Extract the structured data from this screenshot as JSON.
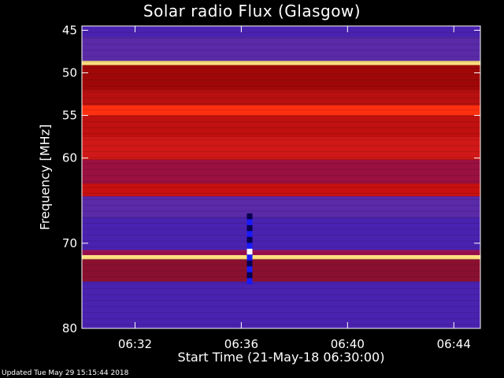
{
  "chart_data": {
    "type": "heatmap",
    "title": "Solar radio Flux (Glasgow)",
    "xlabel": "Start Time (21-May-18 06:30:00)",
    "ylabel": "Frequency [MHz]",
    "footer": "Updated Tue May 29 15:15:44 2018",
    "x_tick_labels": [
      "06:32",
      "06:36",
      "06:40",
      "06:44"
    ],
    "x_tick_minutes": [
      2,
      6,
      10,
      14
    ],
    "x_range_minutes": [
      0,
      15
    ],
    "y_tick_labels": [
      "45",
      "50",
      "55",
      "60",
      "70",
      "80"
    ],
    "y_tick_values": [
      45,
      50,
      55,
      60,
      70,
      80
    ],
    "y_range_mhz": [
      44.5,
      80
    ],
    "colormap": [
      "#1a0033",
      "#3a1aa0",
      "#5a2ab8",
      "#8a1a6a",
      "#b00000",
      "#e01010",
      "#ff4020",
      "#ffa040",
      "#ffe080"
    ],
    "bands": [
      {
        "from": 44.5,
        "to": 45.8,
        "color": "#4a22b0"
      },
      {
        "from": 45.8,
        "to": 48.6,
        "color": "#5a2aa8"
      },
      {
        "from": 48.6,
        "to": 49.1,
        "color": "#ffe080"
      },
      {
        "from": 49.1,
        "to": 52.0,
        "color": "#a00808"
      },
      {
        "from": 52.0,
        "to": 53.8,
        "color": "#b81010"
      },
      {
        "from": 53.8,
        "to": 55.0,
        "color": "#ff3010"
      },
      {
        "from": 55.0,
        "to": 57.5,
        "color": "#c01010"
      },
      {
        "from": 57.5,
        "to": 60.2,
        "color": "#d01818"
      },
      {
        "from": 60.2,
        "to": 63.0,
        "color": "#9a1040"
      },
      {
        "from": 63.0,
        "to": 64.5,
        "color": "#c81010"
      },
      {
        "from": 64.5,
        "to": 67.0,
        "color": "#5a2aa8"
      },
      {
        "from": 67.0,
        "to": 70.8,
        "color": "#4a22b0"
      },
      {
        "from": 70.8,
        "to": 71.4,
        "color": "#9a1050"
      },
      {
        "from": 71.4,
        "to": 71.9,
        "color": "#ffe080"
      },
      {
        "from": 71.9,
        "to": 74.5,
        "color": "#8a1030"
      },
      {
        "from": 74.5,
        "to": 80.0,
        "color": "#4a22b0"
      }
    ],
    "burst": {
      "minute": 6.3,
      "from_mhz": 66.5,
      "to_mhz": 74.8,
      "color_dark": "#0a0050",
      "color_mid": "#1a1aff",
      "color_hot": "#ffffff"
    }
  }
}
